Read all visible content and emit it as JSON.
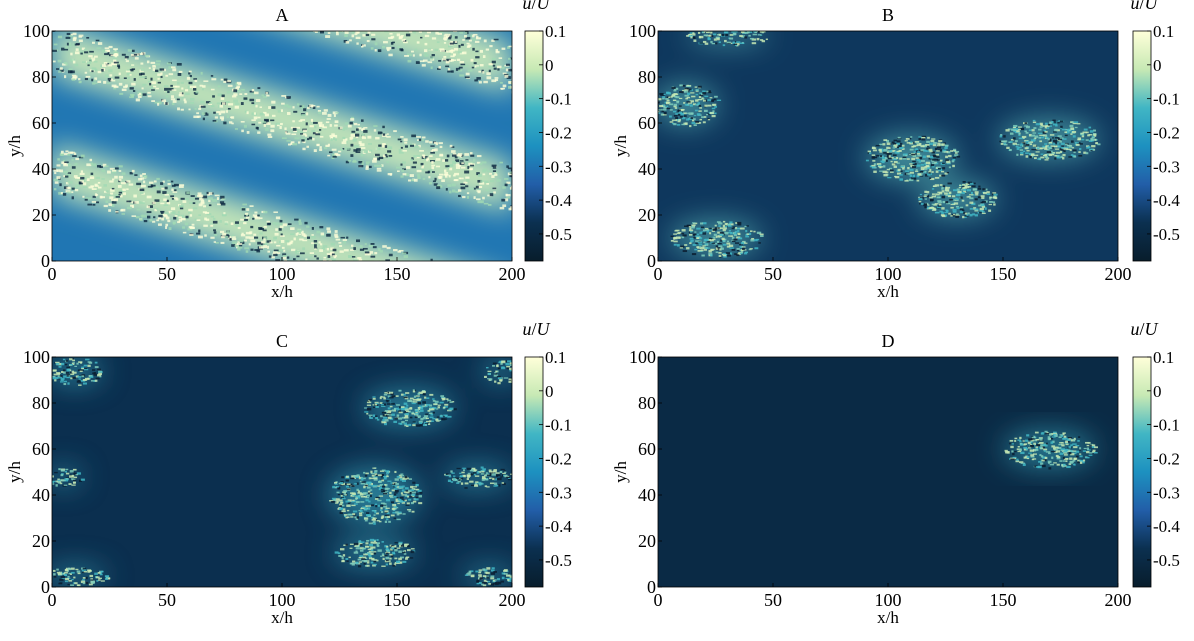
{
  "figure": {
    "colorbar": {
      "label": "u/U",
      "label_var": "u",
      "label_sep": "/",
      "label_ref": "U",
      "ticks": [
        0.1,
        0,
        -0.1,
        -0.2,
        -0.3,
        -0.4,
        -0.5
      ],
      "tick_labels": [
        "0.1",
        "0",
        "-0.1",
        "-0.2",
        "-0.3",
        "-0.4",
        "-0.5"
      ],
      "range": [
        -0.58,
        0.1
      ],
      "colormap": [
        "#ffffd9",
        "#c7e9b4",
        "#41b6c4",
        "#1d91c0",
        "#225ea8",
        "#0b3050",
        "#081d2c"
      ]
    }
  },
  "chart_data": [
    {
      "type": "heatmap",
      "title": "A",
      "xlabel": "x/h",
      "ylabel": "y/h",
      "xlim": [
        0,
        200
      ],
      "ylim": [
        0,
        100
      ],
      "xticks": [
        0,
        50,
        100,
        150,
        200
      ],
      "xtick_labels": [
        "0",
        "50",
        "100",
        "150",
        "200"
      ],
      "yticks": [
        0,
        20,
        40,
        60,
        80,
        100
      ],
      "ytick_labels": [
        "0",
        "20",
        "40",
        "60",
        "80",
        "100"
      ],
      "background_value": -0.3,
      "turbulent_regions": [
        {
          "shape": "oblique-band",
          "x_range": [
            0,
            200
          ],
          "y_at_x0": 92,
          "y_at_x200": 32,
          "width": 22,
          "value": 0.0
        },
        {
          "shape": "oblique-band",
          "x_range": [
            0,
            200
          ],
          "y_at_x0": 40,
          "y_at_x200": -20,
          "width": 22,
          "value": 0.0
        },
        {
          "shape": "oblique-band",
          "x_range": [
            0,
            200
          ],
          "y_at_x0": 144,
          "y_at_x200": 84,
          "width": 22,
          "value": 0.0
        }
      ]
    },
    {
      "type": "heatmap",
      "title": "B",
      "xlabel": "x/h",
      "ylabel": "y/h",
      "xlim": [
        0,
        200
      ],
      "ylim": [
        0,
        100
      ],
      "xticks": [
        0,
        50,
        100,
        150,
        200
      ],
      "xtick_labels": [
        "0",
        "50",
        "100",
        "150",
        "200"
      ],
      "yticks": [
        0,
        20,
        40,
        60,
        80,
        100
      ],
      "ytick_labels": [
        "0",
        "20",
        "40",
        "60",
        "80",
        "100"
      ],
      "background_value": -0.45,
      "turbulent_regions": [
        {
          "shape": "spot",
          "cx": 12,
          "cy": 68,
          "rx": 14,
          "ry": 9,
          "value": -0.1
        },
        {
          "shape": "spot",
          "cx": 30,
          "cy": 98,
          "rx": 18,
          "ry": 4,
          "value": -0.1
        },
        {
          "shape": "spot",
          "cx": 25,
          "cy": 10,
          "rx": 20,
          "ry": 8,
          "value": -0.1
        },
        {
          "shape": "spot",
          "cx": 110,
          "cy": 45,
          "rx": 20,
          "ry": 10,
          "value": -0.1
        },
        {
          "shape": "spot",
          "cx": 130,
          "cy": 27,
          "rx": 17,
          "ry": 8,
          "value": -0.1
        },
        {
          "shape": "spot",
          "cx": 170,
          "cy": 53,
          "rx": 22,
          "ry": 9,
          "value": -0.1
        }
      ]
    },
    {
      "type": "heatmap",
      "title": "C",
      "xlabel": "x/h",
      "ylabel": "y/h",
      "xlim": [
        0,
        200
      ],
      "ylim": [
        0,
        100
      ],
      "xticks": [
        0,
        50,
        100,
        150,
        200
      ],
      "xtick_labels": [
        "0",
        "50",
        "100",
        "150",
        "200"
      ],
      "yticks": [
        0,
        20,
        40,
        60,
        80,
        100
      ],
      "ytick_labels": [
        "0",
        "20",
        "40",
        "60",
        "80",
        "100"
      ],
      "background_value": -0.47,
      "turbulent_regions": [
        {
          "shape": "spot",
          "cx": 10,
          "cy": 94,
          "rx": 12,
          "ry": 6,
          "value": -0.15
        },
        {
          "shape": "spot",
          "cx": 155,
          "cy": 78,
          "rx": 20,
          "ry": 8,
          "value": -0.15
        },
        {
          "shape": "spot",
          "cx": 195,
          "cy": 94,
          "rx": 8,
          "ry": 5,
          "value": -0.15
        },
        {
          "shape": "spot",
          "cx": 140,
          "cy": 40,
          "rx": 20,
          "ry": 12,
          "value": -0.15
        },
        {
          "shape": "spot",
          "cx": 185,
          "cy": 48,
          "rx": 15,
          "ry": 5,
          "value": -0.15
        },
        {
          "shape": "spot",
          "cx": 5,
          "cy": 48,
          "rx": 8,
          "ry": 4,
          "value": -0.15
        },
        {
          "shape": "spot",
          "cx": 140,
          "cy": 15,
          "rx": 18,
          "ry": 6,
          "value": -0.15
        },
        {
          "shape": "spot",
          "cx": 10,
          "cy": 5,
          "rx": 14,
          "ry": 4,
          "value": -0.15
        },
        {
          "shape": "spot",
          "cx": 190,
          "cy": 5,
          "rx": 12,
          "ry": 4,
          "value": -0.15
        }
      ]
    },
    {
      "type": "heatmap",
      "title": "D",
      "xlabel": "x/h",
      "ylabel": "y/h",
      "xlim": [
        0,
        200
      ],
      "ylim": [
        0,
        100
      ],
      "xticks": [
        0,
        50,
        100,
        150,
        200
      ],
      "xtick_labels": [
        "0",
        "50",
        "100",
        "150",
        "200"
      ],
      "yticks": [
        0,
        20,
        40,
        60,
        80,
        100
      ],
      "ytick_labels": [
        "0",
        "20",
        "40",
        "60",
        "80",
        "100"
      ],
      "background_value": -0.5,
      "turbulent_regions": [
        {
          "shape": "spot",
          "cx": 170,
          "cy": 60,
          "rx": 20,
          "ry": 8,
          "value": -0.15
        }
      ]
    }
  ]
}
